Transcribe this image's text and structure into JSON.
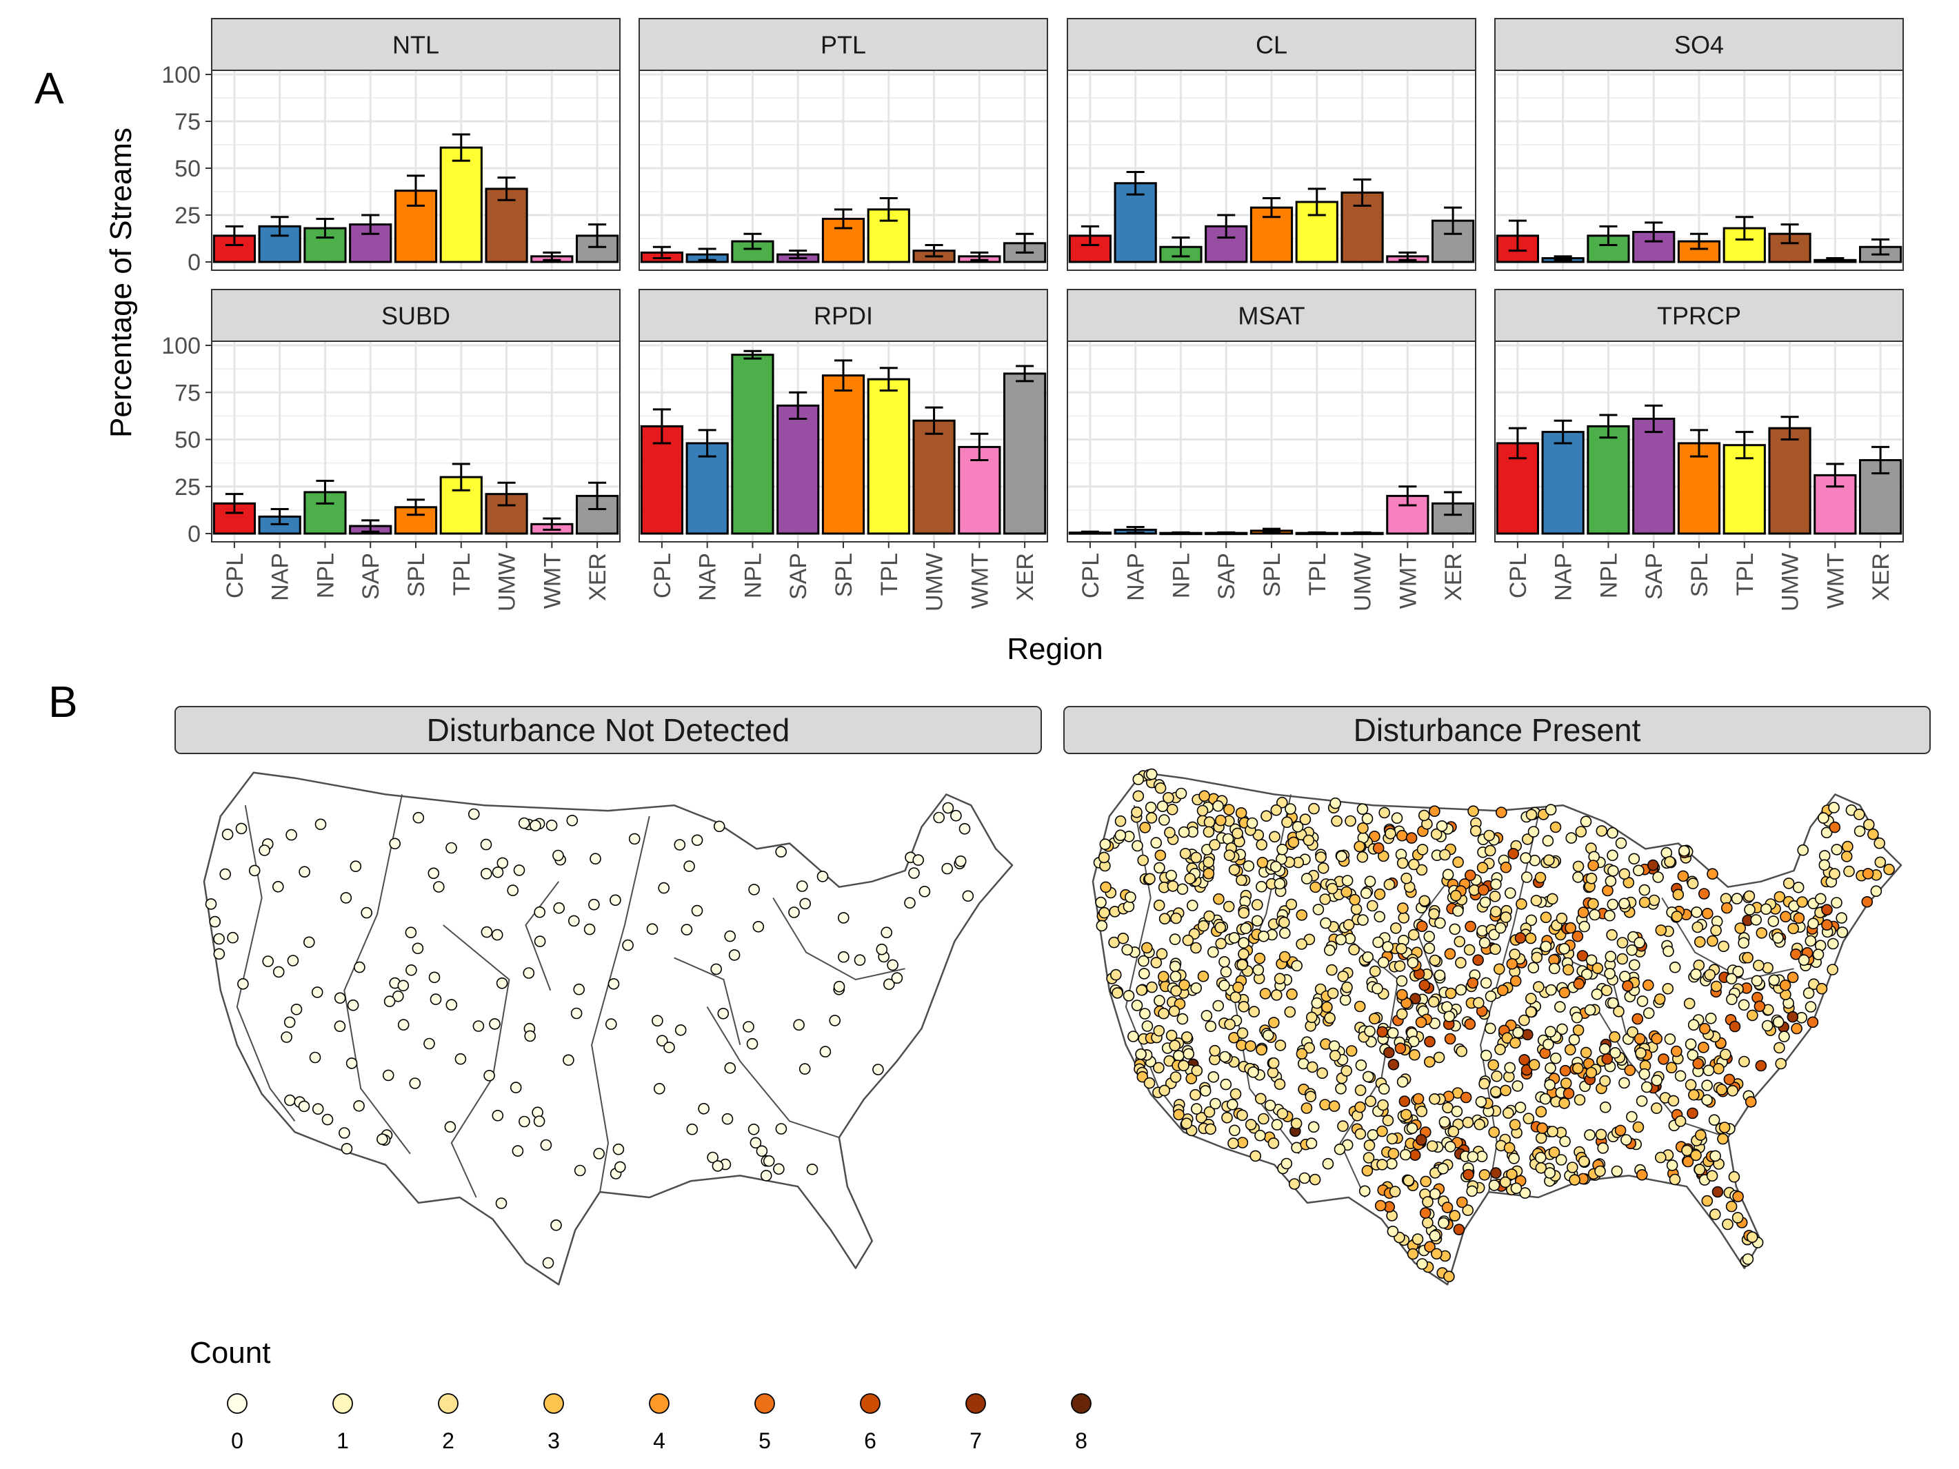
{
  "panel_a_label": "A",
  "panel_b_label": "B",
  "chart_data": [
    {
      "type": "bar",
      "layout": "faceted 2x4",
      "ylabel": "Percentage of Streams",
      "xlabel": "Region",
      "ylim": [
        0,
        100
      ],
      "yticks": [
        0,
        25,
        50,
        75,
        100
      ],
      "grid": true,
      "categories": [
        "CPL",
        "NAP",
        "NPL",
        "SAP",
        "SPL",
        "TPL",
        "UMW",
        "WMT",
        "XER"
      ],
      "category_colors": [
        "#e41a1c",
        "#377eb8",
        "#4daf4a",
        "#984ea3",
        "#ff7f00",
        "#ffff33",
        "#a65628",
        "#f781bf",
        "#999999"
      ],
      "error_bars": true,
      "facets": [
        {
          "name": "NTL",
          "values": [
            14,
            19,
            18,
            20,
            38,
            61,
            39,
            3,
            14
          ],
          "errors": [
            5,
            5,
            5,
            5,
            8,
            7,
            6,
            2,
            6
          ]
        },
        {
          "name": "PTL",
          "values": [
            5,
            4,
            11,
            4,
            23,
            28,
            6,
            3,
            10
          ],
          "errors": [
            3,
            3,
            4,
            2,
            5,
            6,
            3,
            2,
            5
          ]
        },
        {
          "name": "CL",
          "values": [
            14,
            42,
            8,
            19,
            29,
            32,
            37,
            3,
            22
          ],
          "errors": [
            5,
            6,
            5,
            6,
            5,
            7,
            7,
            2,
            7
          ]
        },
        {
          "name": "SO4",
          "values": [
            14,
            2,
            14,
            16,
            11,
            18,
            15,
            1,
            8
          ],
          "errors": [
            8,
            1,
            5,
            5,
            4,
            6,
            5,
            1,
            4
          ]
        },
        {
          "name": "SUBD",
          "values": [
            16,
            9,
            22,
            4,
            14,
            30,
            21,
            5,
            20
          ],
          "errors": [
            5,
            4,
            6,
            3,
            4,
            7,
            6,
            3,
            7
          ]
        },
        {
          "name": "RPDI",
          "values": [
            57,
            48,
            95,
            68,
            84,
            82,
            60,
            46,
            85
          ],
          "errors": [
            9,
            7,
            2,
            7,
            8,
            6,
            7,
            7,
            4
          ]
        },
        {
          "name": "MSAT",
          "values": [
            0.5,
            2,
            0.3,
            0.3,
            1.5,
            0.3,
            0.3,
            20,
            16
          ],
          "errors": [
            0.5,
            1.5,
            0.3,
            0.3,
            1,
            0.3,
            0.3,
            5,
            6
          ]
        },
        {
          "name": "TPRCP",
          "values": [
            48,
            54,
            57,
            61,
            48,
            47,
            56,
            31,
            39
          ],
          "errors": [
            8,
            6,
            6,
            7,
            7,
            7,
            6,
            6,
            7
          ]
        }
      ]
    },
    {
      "type": "scatter",
      "subtype": "point map (conterminous US)",
      "facets": [
        "Disturbance Not Detected",
        "Disturbance Present"
      ],
      "legend_title": "Count",
      "legend_position": "bottom",
      "legend_levels": [
        0,
        1,
        2,
        3,
        4,
        5,
        6,
        7,
        8
      ],
      "legend_colors": [
        "#ffffe5",
        "#fff7bc",
        "#fee391",
        "#fec44f",
        "#fe9929",
        "#ec7014",
        "#cc4c02",
        "#993404",
        "#662506"
      ]
    }
  ]
}
